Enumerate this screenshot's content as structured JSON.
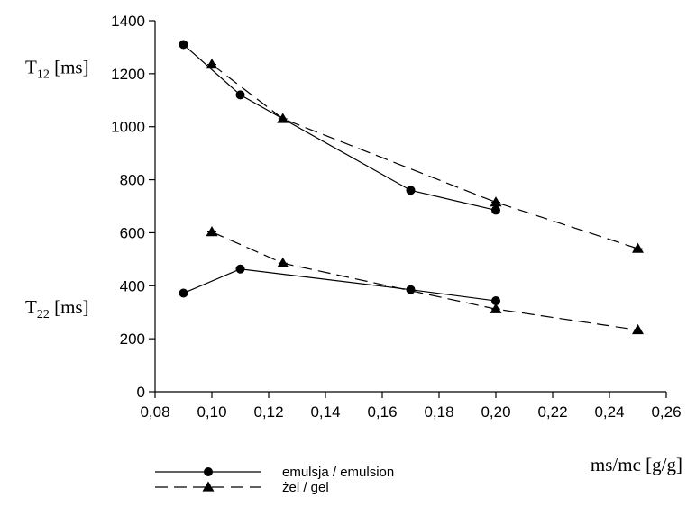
{
  "chart_data": {
    "type": "line",
    "xlabel": "ms/mc [g/g]",
    "xlim": [
      0.08,
      0.26
    ],
    "ylim": [
      0,
      1400
    ],
    "x_ticks": [
      "0,08",
      "0,10",
      "0,12",
      "0,14",
      "0,16",
      "0,18",
      "0,20",
      "0,22",
      "0,24",
      "0,26"
    ],
    "y_ticks": [
      "0",
      "200",
      "400",
      "600",
      "800",
      "1000",
      "1200",
      "1400"
    ],
    "grid": false,
    "legend_position": "bottom-left",
    "annotations": {
      "t12": {
        "main": "T",
        "sub": "12",
        "unit": " [ms]",
        "y": 1225
      },
      "t22": {
        "main": "T",
        "sub": "22",
        "unit": " [ms]",
        "y": 320
      }
    },
    "series": [
      {
        "name": "emulsja / emulsion",
        "group": "T12",
        "marker": "circle",
        "dash": "solid",
        "x": [
          0.09,
          0.11,
          0.17,
          0.2
        ],
        "y": [
          1310,
          1120,
          760,
          685
        ]
      },
      {
        "name": "żel / gel",
        "group": "T12",
        "marker": "triangle",
        "dash": "dashed",
        "x": [
          0.1,
          0.125,
          0.2,
          0.25
        ],
        "y": [
          1235,
          1030,
          715,
          540
        ]
      },
      {
        "name": "emulsja / emulsion",
        "group": "T22",
        "marker": "circle",
        "dash": "solid",
        "x": [
          0.09,
          0.11,
          0.17,
          0.2
        ],
        "y": [
          372,
          463,
          385,
          343
        ]
      },
      {
        "name": "żel / gel",
        "group": "T22",
        "marker": "triangle",
        "dash": "dashed",
        "x": [
          0.1,
          0.125,
          0.2,
          0.25
        ],
        "y": [
          603,
          485,
          312,
          233
        ]
      }
    ],
    "legend": [
      {
        "label": "emulsja / emulsion",
        "marker": "circle",
        "dash": "solid"
      },
      {
        "label": "żel / gel",
        "marker": "triangle",
        "dash": "dashed"
      }
    ]
  }
}
